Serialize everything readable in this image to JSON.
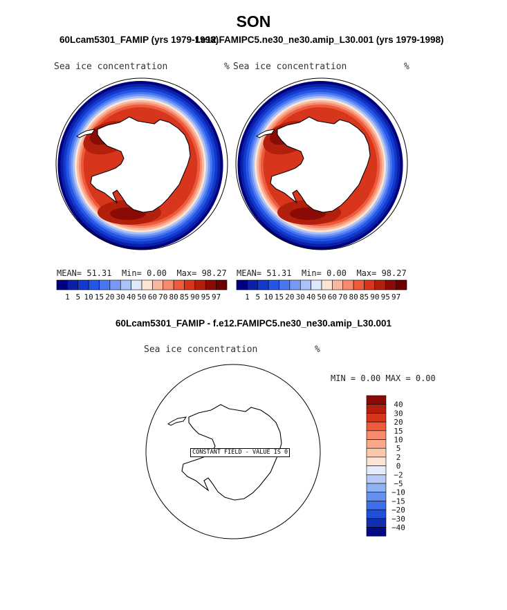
{
  "page": {
    "title": "SON",
    "left_case": "60Lcam5301_FAMIP (yrs 1979-1998)",
    "right_case": "f.e12.FAMIPC5.ne30_ne30.amip_L30.001 (yrs 1979-1998)",
    "diff_title": "60Lcam5301_FAMIP - f.e12.FAMIPC5.ne30_ne30.amip_L30.001"
  },
  "panels": {
    "left": {
      "variable": "Sea ice concentration",
      "units": "%",
      "mean_label": "MEAN=",
      "mean": "51.31",
      "min_label": "Min=",
      "min": "0.00",
      "max_label": "Max=",
      "max": "98.27"
    },
    "right": {
      "variable": "Sea ice concentration",
      "units": "%",
      "mean_label": "MEAN=",
      "mean": "51.31",
      "min_label": "Min=",
      "min": "0.00",
      "max_label": "Max=",
      "max": "98.27"
    },
    "diff": {
      "variable": "Sea ice concentration",
      "units": "%",
      "min_label": "MIN =",
      "min": "0.00",
      "max_label": "MAX =",
      "max": "0.00",
      "constant_field_label": "CONSTANT FIELD - VALUE IS 0"
    }
  },
  "chart_data": [
    {
      "type": "heatmap",
      "name": "left-map",
      "title": "Sea ice concentration",
      "units": "%",
      "projection": "south polar stereographic",
      "stats": {
        "mean": 51.31,
        "min": 0.0,
        "max": 98.27
      },
      "levels": [
        1,
        5,
        10,
        15,
        20,
        30,
        40,
        50,
        60,
        70,
        80,
        85,
        90,
        95,
        97
      ],
      "level_labels": [
        "1",
        "5",
        "10",
        "15",
        "20",
        "30",
        "40",
        "50",
        "60",
        "70",
        "80",
        "85",
        "90",
        "95",
        "97"
      ],
      "colors": [
        "#00007f",
        "#0a20a6",
        "#1338cc",
        "#2456e6",
        "#4877f0",
        "#7799f5",
        "#a9c2f7",
        "#dde8fa",
        "#fde3d3",
        "#f9b7a0",
        "#f68c6d",
        "#ee5a3c",
        "#d8361c",
        "#b31f0d",
        "#8a0b05",
        "#6a0000"
      ]
    },
    {
      "type": "heatmap",
      "name": "right-map",
      "title": "Sea ice concentration",
      "units": "%",
      "projection": "south polar stereographic",
      "stats": {
        "mean": 51.31,
        "min": 0.0,
        "max": 98.27
      },
      "levels": [
        1,
        5,
        10,
        15,
        20,
        30,
        40,
        50,
        60,
        70,
        80,
        85,
        90,
        95,
        97
      ],
      "level_labels": [
        "1",
        "5",
        "10",
        "15",
        "20",
        "30",
        "40",
        "50",
        "60",
        "70",
        "80",
        "85",
        "90",
        "95",
        "97"
      ],
      "colors": [
        "#00007f",
        "#0a20a6",
        "#1338cc",
        "#2456e6",
        "#4877f0",
        "#7799f5",
        "#a9c2f7",
        "#dde8fa",
        "#fde3d3",
        "#f9b7a0",
        "#f68c6d",
        "#ee5a3c",
        "#d8361c",
        "#b31f0d",
        "#8a0b05",
        "#6a0000"
      ]
    },
    {
      "type": "heatmap",
      "name": "difference-map",
      "title": "Sea ice concentration",
      "units": "%",
      "projection": "south polar stereographic",
      "stats": {
        "min": 0.0,
        "max": 0.0
      },
      "levels": [
        40,
        30,
        20,
        15,
        10,
        5,
        2,
        0,
        -2,
        -5,
        -10,
        -15,
        -20,
        -30,
        -40
      ],
      "level_labels": [
        "40",
        "30",
        "20",
        "15",
        "10",
        "5",
        "2",
        "0",
        "−2",
        "−5",
        "−10",
        "−15",
        "−20",
        "−30",
        "−40"
      ],
      "colors": [
        "#8a0b05",
        "#b31f0d",
        "#d8361c",
        "#ee5a3c",
        "#f68c6d",
        "#f9a98a",
        "#fbc7ad",
        "#fde3d3",
        "#e3ecfa",
        "#b5cbf6",
        "#8fb0f2",
        "#6690ee",
        "#3f6fe8",
        "#1f4fd6",
        "#0f2fae",
        "#020a85"
      ]
    }
  ]
}
